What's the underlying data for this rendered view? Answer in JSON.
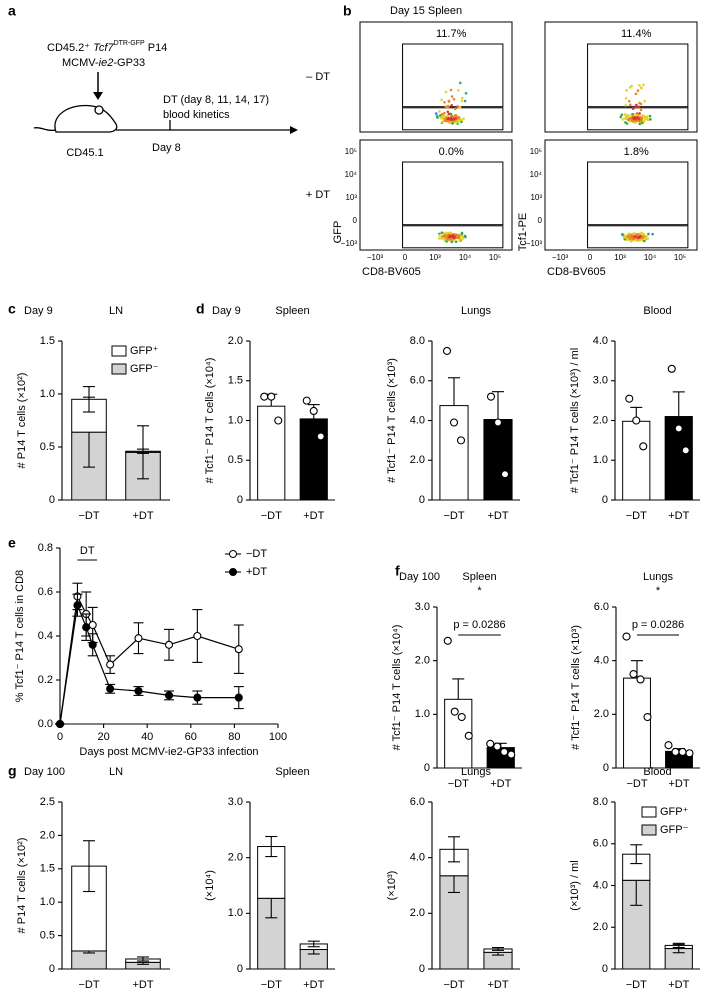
{
  "panel_labels": [
    "a",
    "b",
    "c",
    "d",
    "e",
    "f",
    "g"
  ],
  "diagram": {
    "donor": [
      "CD45.2⁺ ",
      "Tcf7",
      "DTR-GFP",
      " P14"
    ],
    "virus": [
      "MCMV-",
      "ie2",
      "-GP33"
    ],
    "recipient": "CD45.1",
    "day": "Day 8",
    "treatment": "DT (day 8, 11, 14, 17)",
    "readout": "blood kinetics"
  },
  "flow": {
    "title": "Day 15 Spleen",
    "rows": [
      "– DT",
      "+ DT"
    ],
    "gates": {
      "values": [
        11.7,
        11.4,
        0.0,
        1.8
      ],
      "value_labels": [
        "11.7%",
        "11.4%",
        "0.0%",
        "1.8%"
      ]
    },
    "y_labels": [
      "GFP",
      "Tcf1-PE"
    ],
    "x_label": "CD8-BV605",
    "y_ticks": [
      "10⁵",
      "10⁴",
      "10³",
      "0",
      "−10³"
    ],
    "x_ticks": [
      "−10³",
      "0",
      "10³",
      "10⁴",
      "10⁵"
    ]
  },
  "chart_data": [
    {
      "type": "stacked_bar",
      "header": "Day 9",
      "title": "LN",
      "ylabel": "# P14 T cells (×10²)",
      "categories": [
        "−DT",
        "+DT"
      ],
      "series": [
        {
          "name": "GFP⁻",
          "color": "#d3d3d3",
          "values": [
            0.64,
            0.45
          ],
          "errors": [
            0.33,
            0.25
          ]
        },
        {
          "name": "GFP⁺",
          "color": "#ffffff",
          "values": [
            0.31,
            0.01
          ],
          "errors": [
            0.12,
            0.02
          ]
        }
      ],
      "ylim": [
        0,
        1.5
      ],
      "yticks": [
        0,
        0.5,
        {
          "value": 1,
          "label": "1.0"
        },
        1.5
      ],
      "legend": "upper right"
    },
    {
      "type": "bar_dots",
      "header": "Day 9",
      "title": "Spleen",
      "ylabel": "# Tcf1⁻ P14 T cells (×10⁴)",
      "categories": [
        "−DT",
        "+DT"
      ],
      "colors": [
        "#ffffff",
        "#000000"
      ],
      "values": [
        1.18,
        1.02
      ],
      "errors": [
        0.15,
        0.18
      ],
      "points": [
        [
          1.3,
          1.3,
          1.0
        ],
        [
          1.25,
          1.12,
          0.8
        ]
      ],
      "ylim": [
        0,
        2
      ],
      "yticks": [
        0,
        0.5,
        {
          "value": 1,
          "label": "1.0"
        },
        1.5,
        {
          "value": 2,
          "label": "2.0"
        }
      ]
    },
    {
      "type": "bar_dots",
      "title": "Lungs",
      "ylabel": "# Tcf1⁻ P14 T cells (×10³)",
      "categories": [
        "−DT",
        "+DT"
      ],
      "colors": [
        "#ffffff",
        "#000000"
      ],
      "values": [
        4.75,
        4.05
      ],
      "errors": [
        1.4,
        1.4
      ],
      "points": [
        [
          7.5,
          3.9,
          3.0
        ],
        [
          5.2,
          3.9,
          1.3
        ]
      ],
      "ylim": [
        0,
        8
      ],
      "yticks": [
        0,
        {
          "value": 2,
          "label": "2.0"
        },
        {
          "value": 4,
          "label": "4.0"
        },
        {
          "value": 6,
          "label": "6.0"
        },
        {
          "value": 8,
          "label": "8.0"
        }
      ]
    },
    {
      "type": "bar_dots",
      "title": "Blood",
      "ylabel": "# Tcf1⁻ P14 T cells (×10³) / ml",
      "categories": [
        "−DT",
        "+DT"
      ],
      "colors": [
        "#ffffff",
        "#000000"
      ],
      "values": [
        1.98,
        2.1
      ],
      "errors": [
        0.35,
        0.62
      ],
      "points": [
        [
          2.55,
          2.0,
          1.35
        ],
        [
          3.3,
          1.8,
          1.25
        ]
      ],
      "ylim": [
        0,
        4
      ],
      "yticks": [
        0,
        {
          "value": 1,
          "label": "1.0"
        },
        {
          "value": 2,
          "label": "2.0"
        },
        {
          "value": 3,
          "label": "3.0"
        },
        {
          "value": 4,
          "label": "4.0"
        }
      ]
    },
    {
      "type": "line",
      "xlabel": "Days post MCMV-ie2-GP33 infection",
      "ylabel": "% Tcf1⁻ P14 T cells in CD8",
      "annotation": "DT",
      "dt_window": [
        8,
        17
      ],
      "x": [
        0,
        8,
        12,
        15,
        23,
        36,
        50,
        63,
        82
      ],
      "series": [
        {
          "name": "−DT",
          "color": "#000000",
          "marker": "open",
          "values": [
            0,
            0.58,
            0.5,
            0.45,
            0.27,
            0.39,
            0.36,
            0.4,
            0.34
          ],
          "errors": [
            0,
            0.06,
            0.1,
            0.08,
            0.04,
            0.07,
            0.07,
            0.12,
            0.11
          ]
        },
        {
          "name": "+DT",
          "color": "#000000",
          "marker": "filled",
          "values": [
            0,
            0.54,
            0.44,
            0.36,
            0.16,
            0.15,
            0.13,
            0.12,
            0.12
          ],
          "errors": [
            0,
            0.05,
            0.06,
            0.05,
            0.02,
            0.02,
            0.02,
            0.03,
            0.05
          ]
        }
      ],
      "xlim": [
        0,
        100
      ],
      "xticks": [
        0,
        20,
        40,
        60,
        80,
        100
      ],
      "ylim": [
        0,
        0.8
      ],
      "yticks": [
        {
          "value": 0,
          "label": "0.0"
        },
        0.2,
        0.4,
        0.6,
        0.8
      ],
      "legend": "upper right"
    },
    {
      "type": "bar_dots",
      "header": "Day 100",
      "title": "Spleen",
      "ylabel": "# Tcf1⁻ P14 T cells (×10⁴)",
      "categories": [
        "−DT",
        "+DT"
      ],
      "colors": [
        "#ffffff",
        "#000000"
      ],
      "values": [
        1.28,
        0.38
      ],
      "errors": [
        0.38,
        0.08
      ],
      "points": [
        [
          2.37,
          1.05,
          0.95,
          0.6
        ],
        [
          0.45,
          0.4,
          0.3,
          0.25
        ]
      ],
      "ylim": [
        0,
        3
      ],
      "yticks": [
        0,
        {
          "value": 1,
          "label": "1.0"
        },
        {
          "value": 2,
          "label": "2.0"
        },
        {
          "value": 3,
          "label": "3.0"
        }
      ],
      "annotation": {
        "text": "p = 0.0286",
        "star": "*"
      }
    },
    {
      "type": "bar_dots",
      "title": "Lungs",
      "ylabel": "# Tcf1⁻ P14 T cells (×10³)",
      "categories": [
        "−DT",
        "+DT"
      ],
      "colors": [
        "#ffffff",
        "#000000"
      ],
      "values": [
        3.35,
        0.62
      ],
      "errors": [
        0.65,
        0.1
      ],
      "points": [
        [
          4.9,
          3.5,
          3.3,
          1.9
        ],
        [
          0.85,
          0.6,
          0.6,
          0.55
        ]
      ],
      "ylim": [
        0,
        6
      ],
      "yticks": [
        0,
        {
          "value": 2,
          "label": "2.0"
        },
        {
          "value": 4,
          "label": "4.0"
        },
        {
          "value": 6,
          "label": "6.0"
        }
      ],
      "annotation": {
        "text": "p = 0.0286",
        "star": "*"
      }
    },
    {
      "type": "stacked_bar",
      "header": "Day 100",
      "title": "LN",
      "ylabel": "# P14 T cells (×10²)",
      "categories": [
        "−DT",
        "+DT"
      ],
      "series": [
        {
          "color": "#d3d3d3",
          "values": [
            0.27,
            0.1
          ],
          "errors": [
            0.03,
            0.03
          ]
        },
        {
          "color": "#ffffff",
          "values": [
            1.27,
            0.05
          ],
          "errors": [
            0.38,
            0.03
          ]
        }
      ],
      "ylim": [
        0,
        2.5
      ],
      "yticks": [
        0,
        0.5,
        {
          "value": 1,
          "label": "1.0"
        },
        1.5,
        {
          "value": 2,
          "label": "2.0"
        },
        2.5
      ]
    },
    {
      "type": "stacked_bar",
      "title": "Spleen",
      "ylabel": "(×10⁴)",
      "categories": [
        "−DT",
        "+DT"
      ],
      "series": [
        {
          "color": "#d3d3d3",
          "values": [
            1.27,
            0.35
          ],
          "errors": [
            0.35,
            0.08
          ]
        },
        {
          "color": "#ffffff",
          "values": [
            0.93,
            0.1
          ],
          "errors": [
            0.18,
            0.05
          ]
        }
      ],
      "ylim": [
        0,
        3
      ],
      "yticks": [
        0,
        {
          "value": 1,
          "label": "1.0"
        },
        {
          "value": 2,
          "label": "2.0"
        },
        {
          "value": 3,
          "label": "3.0"
        }
      ]
    },
    {
      "type": "stacked_bar",
      "title": "Lungs",
      "ylabel": "(×10³)",
      "categories": [
        "−DT",
        "+DT"
      ],
      "series": [
        {
          "color": "#d3d3d3",
          "values": [
            3.35,
            0.6
          ],
          "errors": [
            0.6,
            0.1
          ]
        },
        {
          "color": "#ffffff",
          "values": [
            0.95,
            0.12
          ],
          "errors": [
            0.45,
            0.05
          ]
        }
      ],
      "ylim": [
        0,
        6
      ],
      "yticks": [
        0,
        {
          "value": 2,
          "label": "2.0"
        },
        {
          "value": 4,
          "label": "4.0"
        },
        {
          "value": 6,
          "label": "6.0"
        }
      ]
    },
    {
      "type": "stacked_bar",
      "title": "Blood",
      "ylabel": "(×10³) / ml",
      "categories": [
        "−DT",
        "+DT"
      ],
      "series": [
        {
          "name": "GFP⁻",
          "color": "#d3d3d3",
          "values": [
            4.25,
            0.98
          ],
          "errors": [
            1.2,
            0.2
          ]
        },
        {
          "name": "GFP⁺",
          "color": "#ffffff",
          "values": [
            1.25,
            0.15
          ],
          "errors": [
            0.45,
            0.1
          ]
        }
      ],
      "ylim": [
        0,
        8
      ],
      "yticks": [
        0,
        {
          "value": 2,
          "label": "2.0"
        },
        {
          "value": 4,
          "label": "4.0"
        },
        {
          "value": 6,
          "label": "6.0"
        },
        {
          "value": 8,
          "label": "8.0"
        }
      ],
      "legend": "upper right"
    }
  ]
}
